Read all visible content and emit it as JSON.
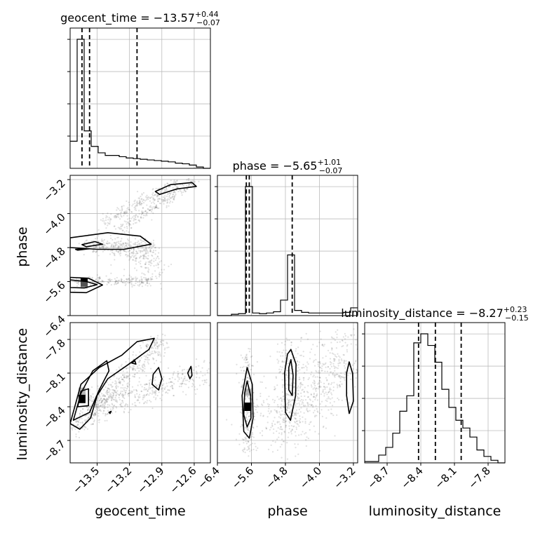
{
  "chart_data": {
    "type": "corner",
    "parameters": [
      "geocent_time",
      "phase",
      "luminosity_distance"
    ],
    "ranges": {
      "geocent_time": [
        -13.75,
        -12.45
      ],
      "phase": [
        -6.4,
        -3.1
      ],
      "luminosity_distance": [
        -8.9,
        -7.65
      ]
    },
    "ticks": {
      "geocent_time": [
        -13.5,
        -13.2,
        -12.9,
        -12.6
      ],
      "phase": [
        -6.4,
        -5.6,
        -4.8,
        -4.0,
        -3.2
      ],
      "luminosity_distance": [
        -8.7,
        -8.4,
        -8.1,
        -7.8
      ]
    },
    "tick_labels": {
      "geocent_time": [
        "−13.5",
        "−13.2",
        "−12.9",
        "−12.6"
      ],
      "phase": [
        "−6.4",
        "−5.6",
        "−4.8",
        "−4.0",
        "−3.2"
      ],
      "luminosity_distance": [
        "−8.7",
        "−8.4",
        "−8.1",
        "−7.8"
      ]
    },
    "axis_labels": {
      "geocent_time": "geocent_time",
      "phase": "phase",
      "luminosity_distance": "luminosity_distance"
    },
    "titles": [
      {
        "name": "geocent_time",
        "median": "−13.57",
        "plus": "+0.44",
        "minus": "−0.07"
      },
      {
        "name": "phase",
        "median": "−5.65",
        "plus": "+1.01",
        "minus": "−0.07"
      },
      {
        "name": "luminosity_distance",
        "median": "−8.27",
        "plus": "+0.23",
        "minus": "−0.15"
      }
    ],
    "marginals": {
      "geocent_time": {
        "edges": [
          -13.75,
          -13.685,
          -13.62,
          -13.555,
          -13.49,
          -13.425,
          -13.36,
          -13.295,
          -13.23,
          -13.165,
          -13.1,
          -13.035,
          -12.97,
          -12.905,
          -12.84,
          -12.775,
          -12.71,
          -12.645,
          -12.58,
          -12.515,
          -12.45
        ],
        "counts": [
          0.21,
          1.0,
          0.29,
          0.17,
          0.12,
          0.1,
          0.1,
          0.09,
          0.08,
          0.075,
          0.07,
          0.065,
          0.06,
          0.055,
          0.05,
          0.04,
          0.035,
          0.025,
          0.01,
          0.0
        ],
        "quantiles": [
          -13.64,
          -13.57,
          -13.13
        ]
      },
      "phase": {
        "edges": [
          -6.4,
          -6.235,
          -6.07,
          -5.905,
          -5.74,
          -5.575,
          -5.41,
          -5.245,
          -5.08,
          -4.915,
          -4.75,
          -4.585,
          -4.42,
          -4.255,
          -4.09,
          -3.925,
          -3.76,
          -3.595,
          -3.43,
          -3.265,
          -3.1
        ],
        "counts": [
          0.0,
          0.0,
          0.01,
          0.015,
          1.0,
          0.02,
          0.015,
          0.02,
          0.03,
          0.12,
          0.47,
          0.04,
          0.025,
          0.02,
          0.02,
          0.02,
          0.02,
          0.02,
          0.025,
          0.06
        ],
        "quantiles": [
          -5.72,
          -5.65,
          -4.64
        ]
      },
      "luminosity_distance": {
        "edges": [
          -8.9,
          -8.8375,
          -8.775,
          -8.7125,
          -8.65,
          -8.5875,
          -8.525,
          -8.4625,
          -8.4,
          -8.3375,
          -8.275,
          -8.2125,
          -8.15,
          -8.0875,
          -8.025,
          -7.9625,
          -7.9,
          -7.8375,
          -7.775,
          -7.7125,
          -7.65
        ],
        "counts": [
          0.01,
          0.01,
          0.06,
          0.12,
          0.23,
          0.4,
          0.52,
          0.93,
          1.0,
          0.91,
          0.78,
          0.57,
          0.43,
          0.33,
          0.27,
          0.2,
          0.1,
          0.05,
          0.02,
          0.0
        ],
        "quantiles": [
          -8.42,
          -8.27,
          -8.04
        ]
      }
    },
    "pairs": [
      {
        "x": "geocent_time",
        "y": "phase",
        "contours": [
          [
            [
              -13.75,
              -5.5
            ],
            [
              -13.58,
              -5.52
            ],
            [
              -13.45,
              -5.68
            ],
            [
              -13.6,
              -5.86
            ],
            [
              -13.75,
              -5.85
            ]
          ],
          [
            [
              -13.75,
              -5.56
            ],
            [
              -13.6,
              -5.6
            ],
            [
              -13.5,
              -5.67
            ],
            [
              -13.62,
              -5.75
            ],
            [
              -13.75,
              -5.74
            ]
          ],
          [
            [
              -13.75,
              -4.57
            ],
            [
              -13.4,
              -4.45
            ],
            [
              -13.1,
              -4.53
            ],
            [
              -13.0,
              -4.72
            ],
            [
              -13.25,
              -4.84
            ],
            [
              -13.5,
              -4.84
            ],
            [
              -13.75,
              -4.8
            ]
          ],
          [
            [
              -13.64,
              -4.73
            ],
            [
              -13.52,
              -4.66
            ],
            [
              -13.45,
              -4.72
            ],
            [
              -13.6,
              -4.78
            ]
          ],
          [
            [
              -12.96,
              -3.48
            ],
            [
              -12.82,
              -3.32
            ],
            [
              -12.62,
              -3.27
            ],
            [
              -12.58,
              -3.36
            ],
            [
              -12.76,
              -3.42
            ],
            [
              -12.92,
              -3.55
            ]
          ],
          [
            [
              -13.7,
              -4.84
            ],
            [
              -13.58,
              -4.83
            ],
            [
              -13.68,
              -4.86
            ]
          ]
        ],
        "dense": [
          {
            "x": -13.62,
            "y": -5.62,
            "level": 1.0
          },
          {
            "x": -13.62,
            "y": -5.68,
            "level": 0.5
          }
        ],
        "scatter": [
          {
            "from": [
              -13.45,
              -4.2
            ],
            "to": [
              -12.75,
              -3.3
            ],
            "spread": 0.07,
            "n": 220
          },
          {
            "from": [
              -13.3,
              -4.38
            ],
            "to": [
              -12.6,
              -3.25
            ],
            "spread": 0.06,
            "n": 220
          },
          {
            "from": [
              -13.6,
              -4.75
            ],
            "to": [
              -13.0,
              -4.8
            ],
            "spread": 0.1,
            "n": 300
          },
          {
            "from": [
              -13.2,
              -4.9
            ],
            "to": [
              -12.9,
              -5.4
            ],
            "spread": 0.15,
            "n": 120
          },
          {
            "from": [
              -13.7,
              -5.6
            ],
            "to": [
              -13.0,
              -5.58
            ],
            "spread": 0.05,
            "n": 200
          }
        ]
      },
      {
        "x": "geocent_time",
        "y": "luminosity_distance",
        "contours": [
          [
            [
              -13.75,
              -8.55
            ],
            [
              -13.65,
              -8.2
            ],
            [
              -13.48,
              -8.05
            ],
            [
              -13.27,
              -7.94
            ],
            [
              -13.13,
              -7.82
            ],
            [
              -12.97,
              -7.79
            ],
            [
              -13.02,
              -7.89
            ],
            [
              -13.22,
              -8.03
            ],
            [
              -13.4,
              -8.15
            ],
            [
              -13.5,
              -8.3
            ],
            [
              -13.56,
              -8.5
            ],
            [
              -13.66,
              -8.6
            ]
          ],
          [
            [
              -13.72,
              -8.52
            ],
            [
              -13.65,
              -8.28
            ],
            [
              -13.54,
              -8.08
            ],
            [
              -13.41,
              -7.99
            ],
            [
              -13.39,
              -8.08
            ],
            [
              -13.48,
              -8.25
            ],
            [
              -13.57,
              -8.45
            ]
          ],
          [
            [
              -13.68,
              -8.4
            ],
            [
              -13.65,
              -8.26
            ],
            [
              -13.58,
              -8.24
            ],
            [
              -13.58,
              -8.39
            ]
          ],
          [
            [
              -12.98,
              -8.11
            ],
            [
              -12.93,
              -8.05
            ],
            [
              -12.9,
              -8.15
            ],
            [
              -12.93,
              -8.25
            ],
            [
              -12.99,
              -8.2
            ]
          ],
          [
            [
              -12.66,
              -8.1
            ],
            [
              -12.63,
              -8.04
            ],
            [
              -12.62,
              -8.12
            ],
            [
              -12.64,
              -8.15
            ]
          ],
          [
            [
              -13.18,
              -8.01
            ],
            [
              -13.15,
              -7.99
            ],
            [
              -13.14,
              -8.02
            ]
          ],
          [
            [
              -13.39,
              -8.45
            ],
            [
              -13.37,
              -8.44
            ],
            [
              -13.38,
              -8.46
            ]
          ]
        ],
        "dense": [
          {
            "x": -13.64,
            "y": -8.33,
            "level": 1.0
          },
          {
            "x": -13.64,
            "y": -8.26,
            "level": 0.5
          }
        ],
        "scatter": [
          {
            "from": [
              -13.7,
              -8.6
            ],
            "to": [
              -12.9,
              -7.8
            ],
            "spread": 0.12,
            "n": 520
          },
          {
            "from": [
              -13.5,
              -8.4
            ],
            "to": [
              -12.5,
              -8.1
            ],
            "spread": 0.15,
            "n": 360
          }
        ]
      },
      {
        "x": "phase",
        "y": "luminosity_distance",
        "contours": [
          [
            [
              -5.7,
              -8.05
            ],
            [
              -5.58,
              -8.2
            ],
            [
              -5.56,
              -8.5
            ],
            [
              -5.65,
              -8.68
            ],
            [
              -5.78,
              -8.62
            ],
            [
              -5.82,
              -8.3
            ]
          ],
          [
            [
              -5.7,
              -8.17
            ],
            [
              -5.62,
              -8.3
            ],
            [
              -5.61,
              -8.5
            ],
            [
              -5.7,
              -8.58
            ],
            [
              -5.78,
              -8.47
            ],
            [
              -5.76,
              -8.28
            ]
          ],
          [
            [
              -4.67,
              -7.89
            ],
            [
              -4.55,
              -8.02
            ],
            [
              -4.56,
              -8.3
            ],
            [
              -4.68,
              -8.52
            ],
            [
              -4.8,
              -8.45
            ],
            [
              -4.82,
              -8.1
            ],
            [
              -4.75,
              -7.93
            ]
          ],
          [
            [
              -4.67,
              -7.98
            ],
            [
              -4.62,
              -8.12
            ],
            [
              -4.64,
              -8.3
            ],
            [
              -4.72,
              -8.25
            ],
            [
              -4.72,
              -8.05
            ]
          ],
          [
            [
              -3.3,
              -8.0
            ],
            [
              -3.22,
              -8.1
            ],
            [
              -3.2,
              -8.35
            ],
            [
              -3.3,
              -8.46
            ],
            [
              -3.36,
              -8.3
            ],
            [
              -3.36,
              -8.1
            ]
          ]
        ],
        "dense": [
          {
            "x": -5.68,
            "y": -8.4,
            "level": 1.0
          },
          {
            "x": -5.68,
            "y": -8.27,
            "level": 0.55
          }
        ],
        "scatter": [
          {
            "from": [
              -5.68,
              -8.8
            ],
            "to": [
              -5.68,
              -7.9
            ],
            "spread": 0.08,
            "n": 220
          },
          {
            "from": [
              -5.1,
              -8.6
            ],
            "to": [
              -3.3,
              -7.9
            ],
            "spread": 0.35,
            "n": 700
          },
          {
            "from": [
              -4.7,
              -8.5
            ],
            "to": [
              -4.7,
              -7.8
            ],
            "spread": 0.12,
            "n": 180
          }
        ]
      }
    ],
    "colors": {
      "line": "#000000",
      "grid": "#bbbbbb",
      "scatter": "#555555",
      "density_dark": "#000000",
      "density_mid": "#888888"
    }
  }
}
